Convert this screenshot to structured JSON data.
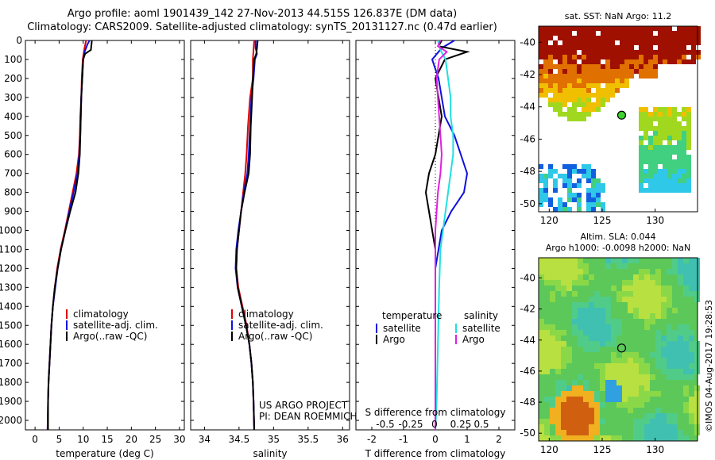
{
  "header": {
    "title_line1": "Argo profile: aoml 1901439_142 27-Nov-2013 44.515S 126.837E (DM data)",
    "title_line2": "Climatology: CARS2009. Satellite-adjusted climatology: synTS_20131127.nc (0.47d earlier)"
  },
  "colors": {
    "climatology": "#e00000",
    "satellite": "#1010e0",
    "argo": "#000000",
    "sal_satellite": "#20e0e0",
    "sal_argo": "#e020e0"
  },
  "chart_data": [
    {
      "type": "line",
      "panel": "temperature",
      "xlabel": "temperature (deg C)",
      "ylabel": "",
      "xlim": [
        -2,
        31
      ],
      "ylim": [
        2050,
        0
      ],
      "xticks": [
        0,
        5,
        10,
        15,
        20,
        25,
        30
      ],
      "xticklabels": [
        "0",
        "5",
        "10",
        "15",
        "20",
        "25",
        "30"
      ],
      "yticks": [
        0,
        100,
        200,
        300,
        400,
        500,
        600,
        700,
        800,
        900,
        1000,
        1100,
        1200,
        1300,
        1400,
        1500,
        1600,
        1700,
        1800,
        1900,
        2000
      ],
      "yticklabels": [
        "0",
        "100",
        "200",
        "300",
        "400",
        "500",
        "600",
        "700",
        "800",
        "900",
        "1000",
        "1100",
        "1200",
        "1300",
        "1400",
        "1500",
        "1600",
        "1700",
        "1800",
        "1900",
        "2000"
      ],
      "legend": [
        "climatology",
        "satellite-adj. clim.",
        "Argo(..raw -QC)"
      ],
      "legend_position": "bottom-right",
      "series": [
        {
          "name": "climatology",
          "color_key": "climatology",
          "points": [
            [
              10.6,
              0
            ],
            [
              10.2,
              50
            ],
            [
              9.9,
              100
            ],
            [
              9.7,
              200
            ],
            [
              9.6,
              300
            ],
            [
              9.4,
              400
            ],
            [
              9.3,
              500
            ],
            [
              9.1,
              600
            ],
            [
              8.6,
              700
            ],
            [
              7.8,
              800
            ],
            [
              7.0,
              900
            ],
            [
              6.2,
              1000
            ],
            [
              5.3,
              1100
            ],
            [
              4.6,
              1200
            ],
            [
              4.1,
              1300
            ],
            [
              3.7,
              1400
            ],
            [
              3.4,
              1500
            ],
            [
              3.2,
              1600
            ],
            [
              3.0,
              1700
            ],
            [
              2.8,
              1800
            ],
            [
              2.7,
              1900
            ],
            [
              2.6,
              2050
            ]
          ]
        },
        {
          "name": "satellite-adj. clim.",
          "color_key": "satellite",
          "points": [
            [
              11.3,
              0
            ],
            [
              10.9,
              20
            ],
            [
              10.3,
              60
            ],
            [
              10.0,
              100
            ],
            [
              9.8,
              200
            ],
            [
              9.6,
              300
            ],
            [
              9.5,
              400
            ],
            [
              9.4,
              500
            ],
            [
              9.2,
              600
            ],
            [
              8.8,
              700
            ],
            [
              8.0,
              800
            ],
            [
              7.1,
              900
            ],
            [
              6.3,
              1000
            ],
            [
              5.4,
              1100
            ],
            [
              4.7,
              1200
            ],
            [
              4.2,
              1300
            ],
            [
              3.7,
              1400
            ],
            [
              3.4,
              1500
            ],
            [
              3.2,
              1600
            ],
            [
              3.0,
              1700
            ],
            [
              2.8,
              1800
            ],
            [
              2.7,
              1900
            ],
            [
              2.6,
              2050
            ]
          ]
        },
        {
          "name": "Argo(..raw -QC)",
          "color_key": "argo",
          "points": [
            [
              11.8,
              0
            ],
            [
              11.6,
              50
            ],
            [
              10.4,
              70
            ],
            [
              10.0,
              100
            ],
            [
              9.8,
              200
            ],
            [
              9.6,
              300
            ],
            [
              9.5,
              400
            ],
            [
              9.4,
              500
            ],
            [
              9.3,
              600
            ],
            [
              9.0,
              700
            ],
            [
              8.4,
              800
            ],
            [
              7.3,
              900
            ],
            [
              6.3,
              1000
            ],
            [
              5.4,
              1100
            ],
            [
              4.7,
              1200
            ],
            [
              4.1,
              1300
            ],
            [
              3.7,
              1400
            ],
            [
              3.4,
              1500
            ],
            [
              3.2,
              1600
            ],
            [
              3.0,
              1700
            ],
            [
              2.8,
              1800
            ],
            [
              2.7,
              1900
            ],
            [
              2.7,
              2050
            ]
          ]
        }
      ]
    },
    {
      "type": "line",
      "panel": "salinity",
      "xlabel": "salinity",
      "xlim": [
        33.8,
        36.1
      ],
      "ylim": [
        2050,
        0
      ],
      "xticks": [
        34,
        34.5,
        35,
        35.5,
        36
      ],
      "xticklabels": [
        "34",
        "34.5",
        "35",
        "35.5",
        "36"
      ],
      "legend": [
        "climatology",
        "satellite-adj. clim.",
        "Argo(..raw -QC)"
      ],
      "legend_position": "bottom-right",
      "annotation": [
        "US ARGO PROJECT",
        "PI: DEAN ROEMMICH"
      ],
      "series": [
        {
          "name": "climatology",
          "color_key": "climatology",
          "points": [
            [
              34.72,
              0
            ],
            [
              34.71,
              50
            ],
            [
              34.7,
              100
            ],
            [
              34.7,
              200
            ],
            [
              34.66,
              300
            ],
            [
              34.63,
              450
            ],
            [
              34.61,
              600
            ],
            [
              34.59,
              700
            ],
            [
              34.56,
              800
            ],
            [
              34.53,
              900
            ],
            [
              34.5,
              1000
            ],
            [
              34.47,
              1100
            ],
            [
              34.46,
              1200
            ],
            [
              34.49,
              1300
            ],
            [
              34.55,
              1400
            ],
            [
              34.61,
              1500
            ],
            [
              34.65,
              1600
            ],
            [
              34.68,
              1700
            ],
            [
              34.7,
              1800
            ],
            [
              34.71,
              1900
            ],
            [
              34.72,
              2050
            ]
          ]
        },
        {
          "name": "satellite-adj. clim.",
          "color_key": "satellite",
          "points": [
            [
              34.74,
              0
            ],
            [
              34.74,
              40
            ],
            [
              34.76,
              70
            ],
            [
              34.73,
              100
            ],
            [
              34.71,
              200
            ],
            [
              34.68,
              300
            ],
            [
              34.66,
              450
            ],
            [
              34.64,
              600
            ],
            [
              34.62,
              700
            ],
            [
              34.57,
              800
            ],
            [
              34.53,
              900
            ],
            [
              34.49,
              1000
            ],
            [
              34.46,
              1100
            ],
            [
              34.45,
              1200
            ],
            [
              34.48,
              1300
            ],
            [
              34.54,
              1400
            ],
            [
              34.6,
              1500
            ],
            [
              34.65,
              1600
            ],
            [
              34.68,
              1700
            ],
            [
              34.7,
              1800
            ],
            [
              34.71,
              1900
            ],
            [
              34.72,
              2050
            ]
          ]
        },
        {
          "name": "Argo(..raw -QC)",
          "color_key": "argo",
          "points": [
            [
              34.77,
              0
            ],
            [
              34.76,
              40
            ],
            [
              34.75,
              70
            ],
            [
              34.72,
              100
            ],
            [
              34.7,
              200
            ],
            [
              34.69,
              300
            ],
            [
              34.67,
              450
            ],
            [
              34.66,
              600
            ],
            [
              34.64,
              700
            ],
            [
              34.58,
              800
            ],
            [
              34.53,
              900
            ],
            [
              34.5,
              1000
            ],
            [
              34.47,
              1100
            ],
            [
              34.46,
              1200
            ],
            [
              34.48,
              1300
            ],
            [
              34.54,
              1400
            ],
            [
              34.6,
              1500
            ],
            [
              34.65,
              1600
            ],
            [
              34.68,
              1700
            ],
            [
              34.7,
              1800
            ],
            [
              34.71,
              1900
            ],
            [
              34.72,
              2050
            ]
          ]
        }
      ]
    },
    {
      "type": "line",
      "panel": "difference",
      "xlabel": "T difference from climatology",
      "xlabel_top": "S difference from climatology",
      "xlim": [
        -2.5,
        2.5
      ],
      "ylim": [
        2050,
        0
      ],
      "xticks": [
        -2,
        -1,
        0,
        1,
        2
      ],
      "xticklabels": [
        "-2",
        "-1",
        "0",
        "1",
        "2"
      ],
      "top_xticklabels": [
        "-0.5",
        "-0.25",
        "0",
        "0.25",
        "0.5"
      ],
      "legend_headers": [
        "temperature",
        "salinity"
      ],
      "legend": [
        "satellite",
        "Argo",
        "satellite",
        "Argo"
      ],
      "legend_position": "bottom-center",
      "series": [
        {
          "name": "temperature satellite",
          "color_key": "satellite",
          "points": [
            [
              0.6,
              0
            ],
            [
              0.2,
              40
            ],
            [
              -0.1,
              100
            ],
            [
              0.1,
              200
            ],
            [
              0.2,
              300
            ],
            [
              0.3,
              400
            ],
            [
              0.6,
              500
            ],
            [
              0.8,
              600
            ],
            [
              1.0,
              700
            ],
            [
              0.9,
              800
            ],
            [
              0.5,
              900
            ],
            [
              0.2,
              1000
            ],
            [
              0.1,
              1100
            ],
            [
              0.0,
              1200
            ],
            [
              0.0,
              1400
            ],
            [
              0.0,
              1700
            ],
            [
              0.0,
              2050
            ]
          ]
        },
        {
          "name": "temperature Argo",
          "color_key": "argo",
          "points": [
            [
              0.2,
              0
            ],
            [
              0.1,
              30
            ],
            [
              0.7,
              50
            ],
            [
              1.0,
              60
            ],
            [
              0.3,
              100
            ],
            [
              0.0,
              200
            ],
            [
              0.1,
              300
            ],
            [
              0.2,
              400
            ],
            [
              0.1,
              500
            ],
            [
              0.0,
              600
            ],
            [
              -0.2,
              700
            ],
            [
              -0.3,
              800
            ],
            [
              -0.2,
              900
            ],
            [
              -0.1,
              1000
            ],
            [
              0.0,
              1100
            ],
            [
              0.0,
              1300
            ],
            [
              0.0,
              1600
            ],
            [
              0.0,
              2050
            ]
          ]
        },
        {
          "name": "salinity satellite",
          "color_key": "sal_satellite",
          "points": [
            [
              0.02,
              0
            ],
            [
              0.04,
              50
            ],
            [
              0.08,
              100
            ],
            [
              0.1,
              200
            ],
            [
              0.12,
              300
            ],
            [
              0.12,
              400
            ],
            [
              0.14,
              500
            ],
            [
              0.14,
              600
            ],
            [
              0.12,
              700
            ],
            [
              0.1,
              800
            ],
            [
              0.08,
              900
            ],
            [
              0.06,
              1000
            ],
            [
              0.04,
              1100
            ],
            [
              0.03,
              1300
            ],
            [
              0.02,
              1600
            ],
            [
              0.01,
              1900
            ],
            [
              0.0,
              2050
            ]
          ]
        },
        {
          "name": "salinity Argo",
          "color_key": "sal_argo",
          "points": [
            [
              0.04,
              0
            ],
            [
              0.02,
              30
            ],
            [
              0.09,
              60
            ],
            [
              0.03,
              100
            ],
            [
              0.01,
              200
            ],
            [
              0.02,
              300
            ],
            [
              0.03,
              400
            ],
            [
              0.04,
              500
            ],
            [
              0.05,
              600
            ],
            [
              0.04,
              700
            ],
            [
              0.02,
              800
            ],
            [
              0.01,
              900
            ],
            [
              0.0,
              1000
            ],
            [
              0.0,
              1200
            ],
            [
              0.0,
              1500
            ],
            [
              0.0,
              2050
            ]
          ]
        }
      ]
    },
    {
      "type": "heatmap",
      "panel": "map_sst",
      "title": "sat. SST: NaN Argo: 11.2",
      "xlim": [
        119,
        134
      ],
      "ylim": [
        -50.5,
        -39
      ],
      "xticks": [
        120,
        125,
        130
      ],
      "xticklabels": [
        "120",
        "125",
        "130"
      ],
      "yticks": [
        -40,
        -42,
        -44,
        -46,
        -48,
        -50
      ],
      "yticklabels": [
        "-40",
        "-42",
        "-44",
        "-46",
        "-48",
        "-50"
      ],
      "marker": {
        "lon": 126.837,
        "lat": -44.515
      }
    },
    {
      "type": "heatmap",
      "panel": "map_sla",
      "title_line1": "Altim. SLA: 0.044",
      "title_line2": "Argo h1000: -0.0098 h2000: NaN",
      "xlim": [
        119,
        134
      ],
      "ylim": [
        -50.5,
        -38.7
      ],
      "xticks": [
        120,
        125,
        130
      ],
      "xticklabels": [
        "120",
        "125",
        "130"
      ],
      "yticks": [
        -40,
        -42,
        -44,
        -46,
        -48,
        -50
      ],
      "yticklabels": [
        "-40",
        "-42",
        "-44",
        "-46",
        "-48",
        "-50"
      ],
      "marker": {
        "lon": 126.837,
        "lat": -44.515
      }
    }
  ],
  "footer": {
    "stamp": "©IMOS 04-Aug-2017 19:28:53"
  }
}
